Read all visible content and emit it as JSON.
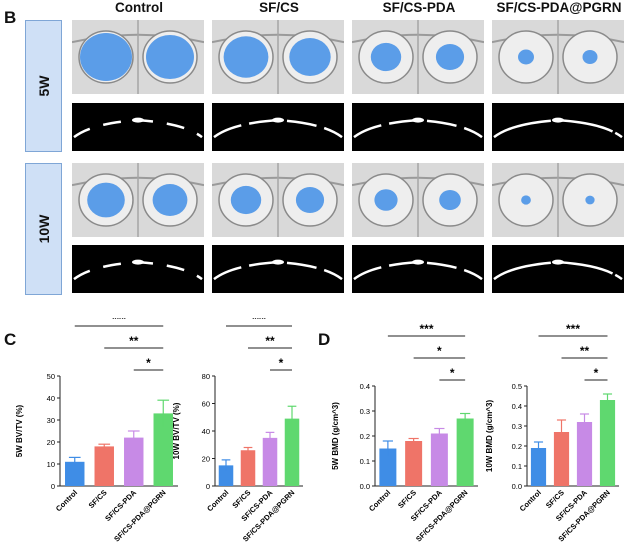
{
  "panels": {
    "b_letter": "B",
    "c_letter": "C",
    "d_letter": "D"
  },
  "groups": [
    "Control",
    "SF/CS",
    "SF/CS-PDA",
    "SF/CS-PDA@PGRN"
  ],
  "rows": [
    "5W",
    "10W"
  ],
  "colors": {
    "control": "#3f8de6",
    "sfcs": "#ef7468",
    "sfcspda": "#c78ae6",
    "pgrn": "#5fd86f",
    "defect_blue": "#5b9de8",
    "row_tab_fill": "#cfe0f6"
  },
  "chart_data": [
    {
      "type": "bar",
      "categories": [
        "Control",
        "SF/CS",
        "SF/CS-PDA",
        "SF/CS-PDA@PGRN"
      ],
      "values": [
        11,
        18,
        22,
        33
      ],
      "errors": [
        2,
        1,
        3,
        6
      ],
      "ylabel": "5W BV/TV (%)",
      "ylim": [
        0,
        50
      ],
      "yticks": [
        "0",
        "10",
        "20",
        "30",
        "40",
        "50"
      ],
      "significance": [
        {
          "from": 0,
          "to": 3,
          "label": "***"
        },
        {
          "from": 1,
          "to": 3,
          "label": "**"
        },
        {
          "from": 2,
          "to": 3,
          "label": "*"
        }
      ]
    },
    {
      "type": "bar",
      "categories": [
        "Control",
        "SF/CS",
        "SF/CS-PDA",
        "SF/CS-PDA@PGRN"
      ],
      "values": [
        15,
        26,
        35,
        49
      ],
      "errors": [
        4,
        2,
        4,
        9
      ],
      "ylabel": "10W BV/TV (%)",
      "ylim": [
        0,
        80
      ],
      "yticks": [
        "0",
        "20",
        "40",
        "60",
        "80"
      ],
      "significance": [
        {
          "from": 0,
          "to": 3,
          "label": "***"
        },
        {
          "from": 1,
          "to": 3,
          "label": "**"
        },
        {
          "from": 2,
          "to": 3,
          "label": "*"
        }
      ]
    },
    {
      "type": "bar",
      "categories": [
        "Control",
        "SF/CS",
        "SF/CS-PDA",
        "SF/CS-PDA@PGRN"
      ],
      "values": [
        0.15,
        0.18,
        0.21,
        0.27
      ],
      "errors": [
        0.03,
        0.01,
        0.02,
        0.02
      ],
      "ylabel": "5W BMD (g/cm^3)",
      "ylim": [
        0,
        0.4
      ],
      "yticks": [
        "0.0",
        "0.1",
        "0.2",
        "0.3",
        "0.4"
      ],
      "significance": [
        {
          "from": 0,
          "to": 3,
          "label": "***"
        },
        {
          "from": 1,
          "to": 3,
          "label": "*"
        },
        {
          "from": 2,
          "to": 3,
          "label": "*"
        }
      ]
    },
    {
      "type": "bar",
      "categories": [
        "Control",
        "SF/CS",
        "SF/CS-PDA",
        "SF/CS-PDA@PGRN"
      ],
      "values": [
        0.19,
        0.27,
        0.32,
        0.43
      ],
      "errors": [
        0.03,
        0.06,
        0.04,
        0.03
      ],
      "ylabel": "10W BMD (g/cm^3)",
      "ylim": [
        0,
        0.5
      ],
      "yticks": [
        "0.0",
        "0.1",
        "0.2",
        "0.3",
        "0.4",
        "0.5"
      ],
      "significance": [
        {
          "from": 0,
          "to": 3,
          "label": "***"
        },
        {
          "from": 1,
          "to": 3,
          "label": "**"
        },
        {
          "from": 2,
          "to": 3,
          "label": "*"
        }
      ]
    }
  ]
}
